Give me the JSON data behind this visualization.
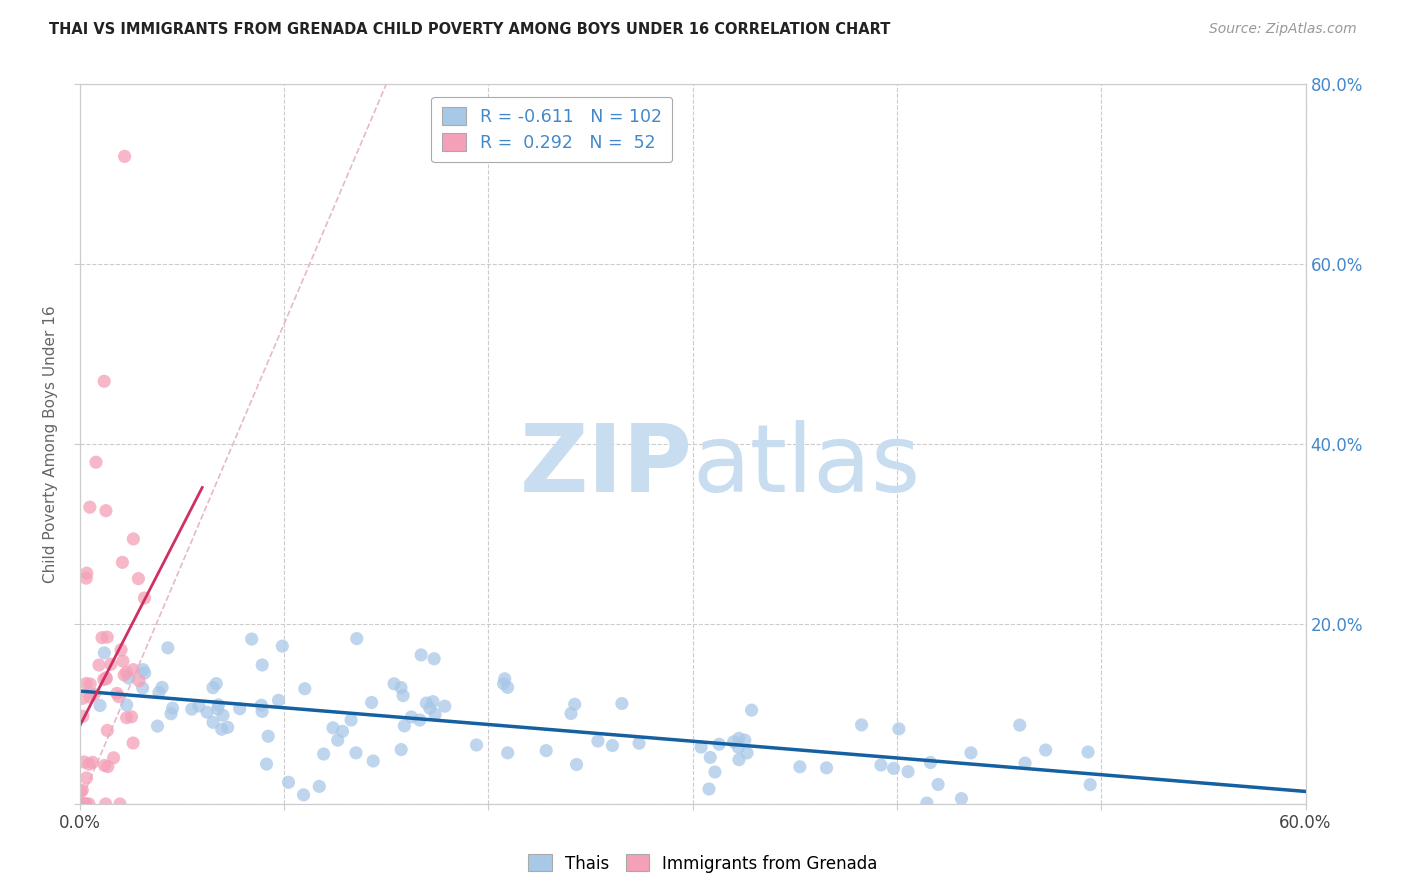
{
  "title": "THAI VS IMMIGRANTS FROM GRENADA CHILD POVERTY AMONG BOYS UNDER 16 CORRELATION CHART",
  "source": "Source: ZipAtlas.com",
  "ylabel": "Child Poverty Among Boys Under 16",
  "xlim": [
    0.0,
    0.6
  ],
  "ylim": [
    0.0,
    0.8
  ],
  "blue_color": "#a8c8e8",
  "pink_color": "#f4a0b8",
  "trend_blue": "#1560a0",
  "trend_pink": "#d03060",
  "diag_color": "#e0a8b8",
  "watermark_zip_color": "#c8ddf0",
  "watermark_atlas_color": "#c8ddf0",
  "background": "#ffffff",
  "grid_color": "#cccccc",
  "right_tick_color": "#4488cc",
  "seed": 99,
  "n_blue": 102,
  "n_pink": 52,
  "R_blue": -0.611,
  "R_pink": 0.292,
  "legend_R1": "-0.611",
  "legend_N1": "102",
  "legend_R2": "0.292",
  "legend_N2": "52"
}
